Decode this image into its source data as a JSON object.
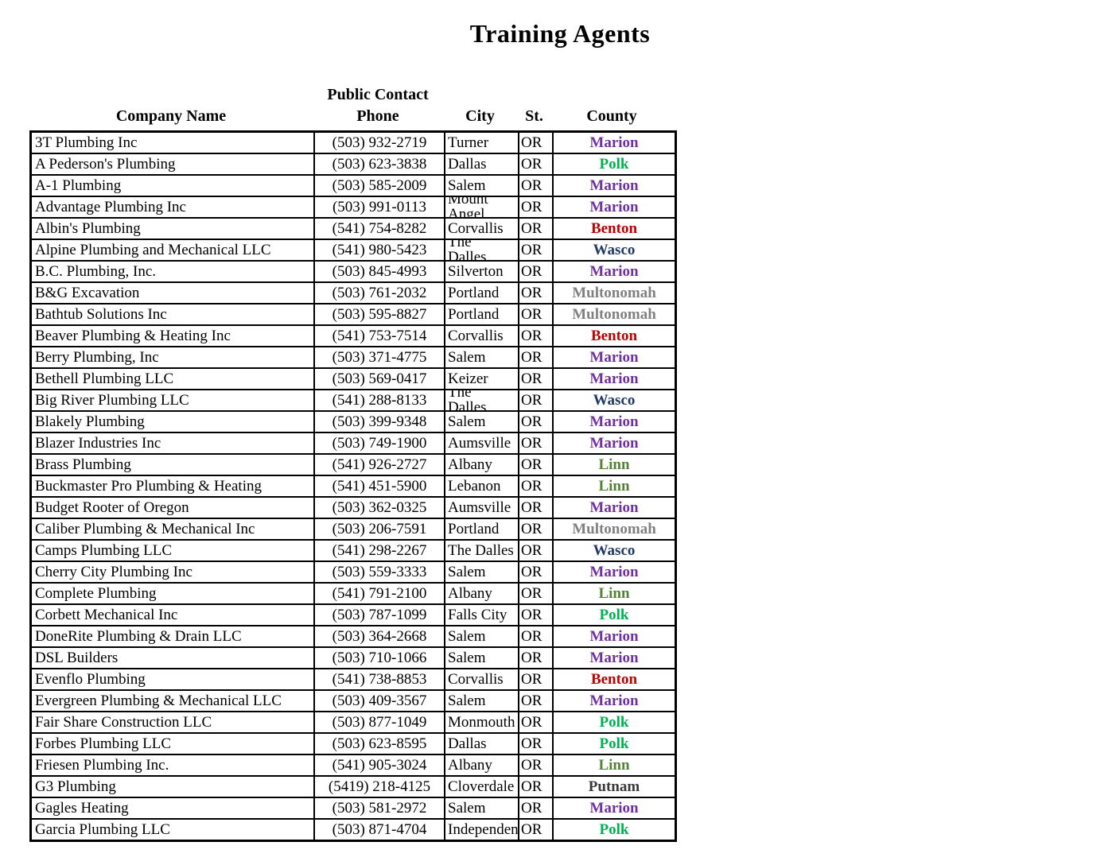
{
  "page": {
    "title": "Training Agents",
    "background_color": "#ffffff",
    "text_color": "#000000"
  },
  "table": {
    "headers": {
      "company": "Company Name",
      "phone_line1": "Public Contact",
      "phone_line2": "Phone",
      "city": "City",
      "state": "St.",
      "county": "County"
    },
    "county_colors": {
      "Marion": "#7030A0",
      "Polk": "#00B050",
      "Benton": "#C00000",
      "Wasco": "#1F3864",
      "Multonomah": "#808080",
      "Linn": "#538135",
      "Putnam": "#3B3838"
    },
    "rows": [
      {
        "company": "3T Plumbing Inc",
        "phone": "(503) 932-2719",
        "city": "Turner",
        "state": "OR",
        "county": "Marion",
        "city_wrap": false
      },
      {
        "company": "A Pederson's Plumbing",
        "phone": "(503) 623-3838",
        "city": "Dallas",
        "state": "OR",
        "county": "Polk",
        "city_wrap": false
      },
      {
        "company": "A-1 Plumbing",
        "phone": "(503) 585-2009",
        "city": "Salem",
        "state": "OR",
        "county": "Marion",
        "city_wrap": false
      },
      {
        "company": "Advantage Plumbing Inc",
        "phone": "(503) 991-0113",
        "city": "Mount Angel",
        "state": "OR",
        "county": "Marion",
        "city_wrap": true
      },
      {
        "company": "Albin's Plumbing",
        "phone": "(541) 754-8282",
        "city": "Corvallis",
        "state": "OR",
        "county": "Benton",
        "city_wrap": false
      },
      {
        "company": "Alpine Plumbing and Mechanical LLC",
        "phone": "(541) 980-5423",
        "city": "The Dalles",
        "state": "OR",
        "county": "Wasco",
        "city_wrap": true
      },
      {
        "company": "B.C. Plumbing, Inc.",
        "phone": "(503) 845-4993",
        "city": "Silverton",
        "state": "OR",
        "county": "Marion",
        "city_wrap": false
      },
      {
        "company": "B&G Excavation",
        "phone": "(503) 761-2032",
        "city": "Portland",
        "state": "OR",
        "county": "Multonomah",
        "city_wrap": false
      },
      {
        "company": "Bathtub Solutions Inc",
        "phone": "(503) 595-8827",
        "city": "Portland",
        "state": "OR",
        "county": "Multonomah",
        "city_wrap": false
      },
      {
        "company": "Beaver Plumbing & Heating Inc",
        "phone": "(541) 753-7514",
        "city": "Corvallis",
        "state": "OR",
        "county": "Benton",
        "city_wrap": false
      },
      {
        "company": "Berry Plumbing, Inc",
        "phone": "(503) 371-4775",
        "city": "Salem",
        "state": "OR",
        "county": "Marion",
        "city_wrap": false
      },
      {
        "company": "Bethell Plumbing LLC",
        "phone": "(503) 569-0417",
        "city": "Keizer",
        "state": "OR",
        "county": "Marion",
        "city_wrap": false
      },
      {
        "company": "Big River Plumbing LLC",
        "phone": "(541) 288-8133",
        "city": "The Dalles",
        "state": "OR",
        "county": "Wasco",
        "city_wrap": true
      },
      {
        "company": "Blakely Plumbing",
        "phone": "(503) 399-9348",
        "city": "Salem",
        "state": "OR",
        "county": "Marion",
        "city_wrap": false
      },
      {
        "company": "Blazer Industries Inc",
        "phone": "(503) 749-1900",
        "city": "Aumsville",
        "state": "OR",
        "county": "Marion",
        "city_wrap": false
      },
      {
        "company": "Brass Plumbing",
        "phone": "(541) 926-2727",
        "city": "Albany",
        "state": "OR",
        "county": "Linn",
        "city_wrap": false
      },
      {
        "company": "Buckmaster Pro Plumbing & Heating",
        "phone": "(541) 451-5900",
        "city": "Lebanon",
        "state": "OR",
        "county": "Linn",
        "city_wrap": false
      },
      {
        "company": "Budget Rooter of Oregon",
        "phone": "(503) 362-0325",
        "city": "Aumsville",
        "state": "OR",
        "county": "Marion",
        "city_wrap": false
      },
      {
        "company": "Caliber Plumbing & Mechanical Inc",
        "phone": "(503) 206-7591",
        "city": "Portland",
        "state": "OR",
        "county": "Multonomah",
        "city_wrap": false
      },
      {
        "company": "Camps Plumbing LLC",
        "phone": "(541) 298-2267",
        "city": "The Dalles",
        "state": "OR",
        "county": "Wasco",
        "city_wrap": false
      },
      {
        "company": "Cherry City Plumbing Inc",
        "phone": "(503) 559-3333",
        "city": "Salem",
        "state": "OR",
        "county": "Marion",
        "city_wrap": false
      },
      {
        "company": "Complete Plumbing",
        "phone": "(541) 791-2100",
        "city": "Albany",
        "state": "OR",
        "county": "Linn",
        "city_wrap": false
      },
      {
        "company": "Corbett Mechanical Inc",
        "phone": "(503) 787-1099",
        "city": "Falls City",
        "state": "OR",
        "county": "Polk",
        "city_wrap": false
      },
      {
        "company": "DoneRite Plumbing & Drain LLC",
        "phone": "(503) 364-2668",
        "city": "Salem",
        "state": "OR",
        "county": "Marion",
        "city_wrap": false
      },
      {
        "company": "DSL Builders",
        "phone": "(503) 710-1066",
        "city": "Salem",
        "state": "OR",
        "county": "Marion",
        "city_wrap": false
      },
      {
        "company": "Evenflo Plumbing",
        "phone": "(541) 738-8853",
        "city": "Corvallis",
        "state": "OR",
        "county": "Benton",
        "city_wrap": false
      },
      {
        "company": "Evergreen Plumbing & Mechanical LLC",
        "phone": "(503) 409-3567",
        "city": "Salem",
        "state": "OR",
        "county": "Marion",
        "city_wrap": false
      },
      {
        "company": "Fair Share Construction LLC",
        "phone": "(503) 877-1049",
        "city": "Monmouth",
        "state": "OR",
        "county": "Polk",
        "city_wrap": false
      },
      {
        "company": "Forbes Plumbing LLC",
        "phone": "(503) 623-8595",
        "city": "Dallas",
        "state": "OR",
        "county": "Polk",
        "city_wrap": false
      },
      {
        "company": "Friesen Plumbing Inc.",
        "phone": "(541) 905-3024",
        "city": "Albany",
        "state": "OR",
        "county": "Linn",
        "city_wrap": false
      },
      {
        "company": "G3 Plumbing",
        "phone": "(5419) 218-4125",
        "city": "Cloverdale",
        "state": "OR",
        "county": "Putnam",
        "city_wrap": false
      },
      {
        "company": "Gagles Heating",
        "phone": "(503) 581-2972",
        "city": "Salem",
        "state": "OR",
        "county": "Marion",
        "city_wrap": false
      },
      {
        "company": "Garcia Plumbing LLC",
        "phone": "(503) 871-4704",
        "city": "Independence",
        "state": "OR",
        "county": "Polk",
        "city_wrap": false
      }
    ]
  }
}
